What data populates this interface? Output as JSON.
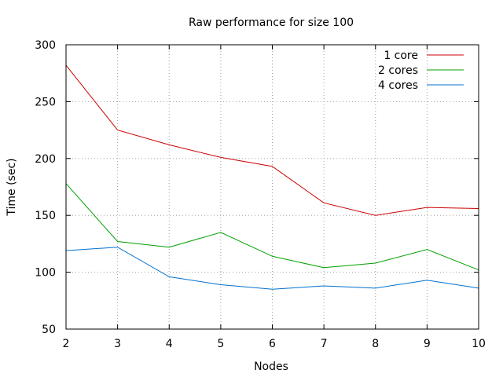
{
  "chart_data": {
    "type": "line",
    "title": "Raw performance for size 100",
    "xlabel": "Nodes",
    "ylabel": "Time (sec)",
    "x": [
      2,
      3,
      4,
      5,
      6,
      7,
      8,
      9,
      10
    ],
    "xlim": [
      2,
      10
    ],
    "ylim": [
      50,
      300
    ],
    "xticks": [
      2,
      3,
      4,
      5,
      6,
      7,
      8,
      9,
      10
    ],
    "yticks": [
      50,
      100,
      150,
      200,
      250,
      300
    ],
    "grid": true,
    "legend_position": "top-right",
    "series": [
      {
        "name": "1 core",
        "color": "#cc0000",
        "values": [
          282,
          225,
          212,
          201,
          193,
          161,
          150,
          157,
          156
        ]
      },
      {
        "name": "2 cores",
        "color": "#00a000",
        "values": [
          178,
          127,
          122,
          135,
          114,
          104,
          108,
          120,
          102
        ]
      },
      {
        "name": "4 cores",
        "color": "#0070d0",
        "values": [
          119,
          122,
          96,
          89,
          85,
          88,
          86,
          93,
          86
        ]
      }
    ]
  }
}
